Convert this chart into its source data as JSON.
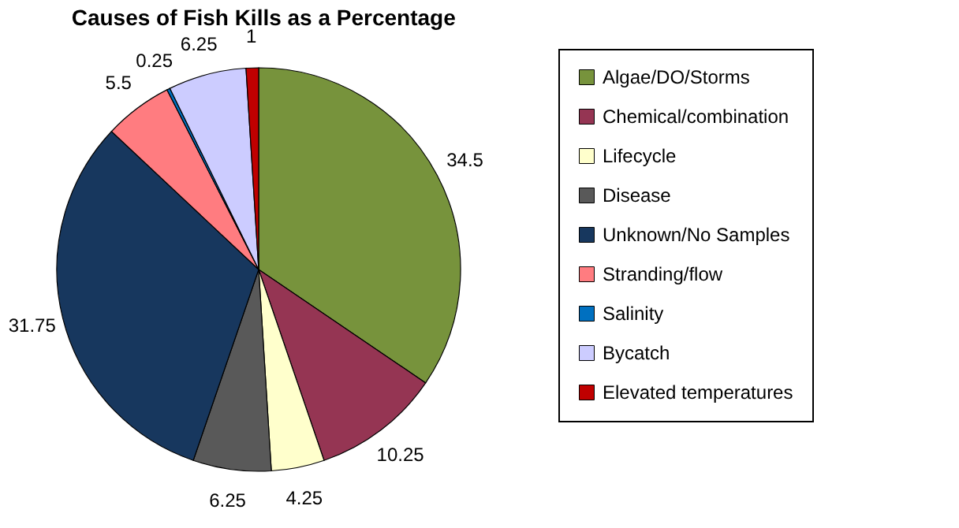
{
  "chart_data": {
    "type": "pie",
    "title": "Causes of Fish Kills as a Percentage",
    "categories": [
      "Algae/DO/Storms",
      "Chemical/combination",
      "Lifecycle",
      "Disease",
      "Unknown/No Samples",
      "Stranding/flow",
      "Salinity",
      "Bycatch",
      "Elevated temperatures"
    ],
    "values": [
      34.5,
      10.25,
      4.25,
      6.25,
      31.75,
      5.5,
      0.25,
      6.25,
      1
    ],
    "colors": [
      "#77933c",
      "#953553",
      "#ffffcc",
      "#595959",
      "#17375e",
      "#ff7c80",
      "#0070c0",
      "#ccccff",
      "#c00000"
    ],
    "data_labels": true,
    "legend": "right"
  }
}
